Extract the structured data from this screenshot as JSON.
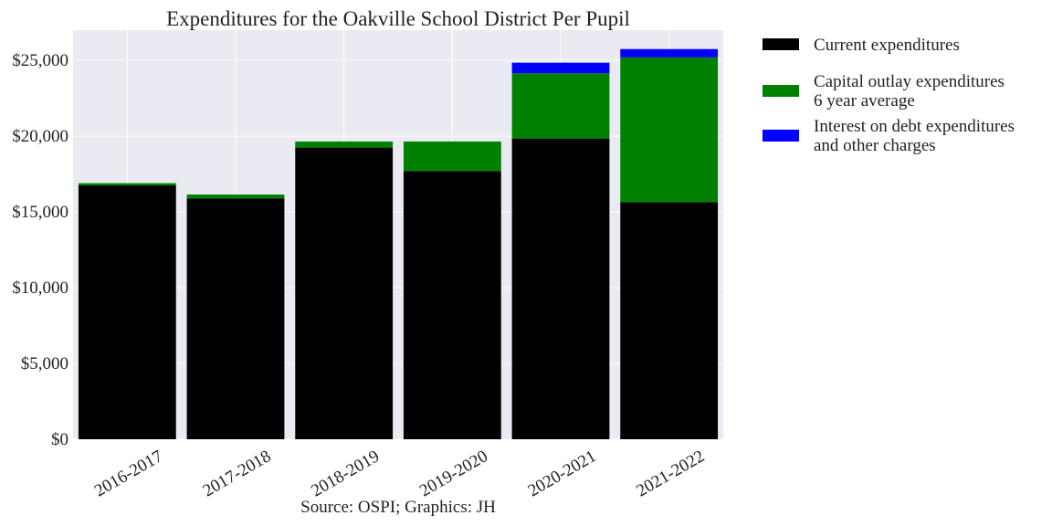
{
  "chart_data": {
    "type": "bar",
    "stacked": true,
    "title": "Expenditures for the Oakville School District Per Pupil",
    "source_note": "Source: OSPI; Graphics: JH",
    "xlabel": "",
    "ylabel": "",
    "ylim": [
      0,
      27000
    ],
    "y_ticks": [
      0,
      5000,
      10000,
      15000,
      20000,
      25000
    ],
    "y_tick_labels": [
      "$0",
      "$5,000",
      "$10,000",
      "$15,000",
      "$20,000",
      "$25,000"
    ],
    "grid": true,
    "legend_position": "outside-right-top",
    "categories": [
      "2016-2017",
      "2017-2018",
      "2018-2019",
      "2019-2020",
      "2020-2021",
      "2021-2022"
    ],
    "series": [
      {
        "name": "Current expenditures",
        "legend_lines": [
          "Current expenditures"
        ],
        "color": "#000000",
        "values": [
          16750,
          15900,
          19250,
          17700,
          19850,
          15650
        ]
      },
      {
        "name": "Capital outlay expenditures 6 year average",
        "legend_lines": [
          "Capital outlay expenditures",
          "6 year average"
        ],
        "color": "#008000",
        "values": [
          150,
          250,
          400,
          1950,
          4300,
          9550
        ]
      },
      {
        "name": "Interest on debt expenditures and other charges",
        "legend_lines": [
          "Interest on debt expenditures",
          "and other charges"
        ],
        "color": "#0000ff",
        "values": [
          0,
          0,
          0,
          0,
          700,
          550
        ]
      }
    ],
    "colors": {
      "plot_background": "#eaeaf2",
      "grid": "#ffffff",
      "text": "#222222"
    }
  }
}
